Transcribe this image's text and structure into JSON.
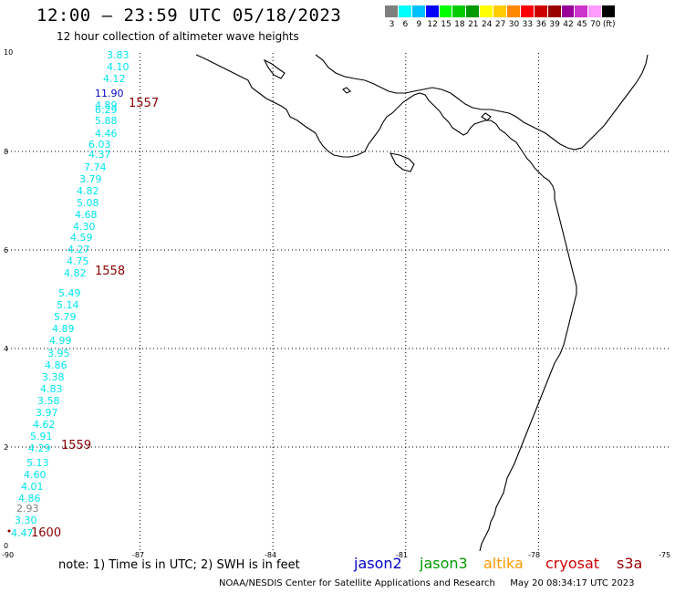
{
  "header": {
    "title": "12:00 – 23:59 UTC 05/18/2023",
    "subtitle": "12 hour collection of altimeter wave heights"
  },
  "scale": {
    "colors": [
      "#7f7f7f",
      "#00ffff",
      "#00bfff",
      "#0000ff",
      "#00ff00",
      "#00cc00",
      "#009900",
      "#ffff00",
      "#ffcc00",
      "#ff8800",
      "#ff0000",
      "#cc0000",
      "#990000",
      "#990099",
      "#cc33cc",
      "#ff99ff",
      "#000000"
    ],
    "labels": [
      "3",
      "6",
      "9",
      "12",
      "15",
      "18",
      "21",
      "24",
      "27",
      "30",
      "33",
      "36",
      "39",
      "42",
      "45",
      "70",
      "(ft)"
    ]
  },
  "axes": {
    "y_labels": [
      "10",
      "8",
      "6",
      "4",
      "2",
      "0"
    ],
    "x_labels": [
      "-90",
      "-87",
      "-84",
      "-81",
      "-78",
      "-75"
    ]
  },
  "passes": [
    "1557",
    "1558",
    "1559",
    "1600"
  ],
  "wave_labels": [
    {
      "v": "3.83",
      "c": "#00e5ee"
    },
    {
      "v": "4.10",
      "c": "#00e5ee"
    },
    {
      "v": "4.12",
      "c": "#00e5ee"
    },
    {
      "v": "11.90",
      "c": "#0000cc"
    },
    {
      "v": "4.89",
      "c": "#00e5ee"
    },
    {
      "v": "6.29",
      "c": "#00e5ee"
    },
    {
      "v": "5.88",
      "c": "#00e5ee"
    },
    {
      "v": "4.46",
      "c": "#00e5ee"
    },
    {
      "v": "6.03",
      "c": "#00e5ee"
    },
    {
      "v": "4.37",
      "c": "#00e5ee"
    },
    {
      "v": "7.74",
      "c": "#00e5ee"
    },
    {
      "v": "3.79",
      "c": "#00e5ee"
    },
    {
      "v": "4.82",
      "c": "#00e5ee"
    },
    {
      "v": "5.08",
      "c": "#00e5ee"
    },
    {
      "v": "4.68",
      "c": "#00e5ee"
    },
    {
      "v": "4.30",
      "c": "#00e5ee"
    },
    {
      "v": "4.59",
      "c": "#00e5ee"
    },
    {
      "v": "4.27",
      "c": "#00e5ee"
    },
    {
      "v": "4.75",
      "c": "#00e5ee"
    },
    {
      "v": "4.82",
      "c": "#00e5ee"
    },
    {
      "v": "5.49",
      "c": "#00e5ee"
    },
    {
      "v": "5.14",
      "c": "#00e5ee"
    },
    {
      "v": "5.79",
      "c": "#00e5ee"
    },
    {
      "v": "4.89",
      "c": "#00e5ee"
    },
    {
      "v": "4.99",
      "c": "#00e5ee"
    },
    {
      "v": "3.95",
      "c": "#00e5ee"
    },
    {
      "v": "4.86",
      "c": "#00e5ee"
    },
    {
      "v": "3.38",
      "c": "#00e5ee"
    },
    {
      "v": "4.83",
      "c": "#00e5ee"
    },
    {
      "v": "3.58",
      "c": "#00e5ee"
    },
    {
      "v": "3.97",
      "c": "#00e5ee"
    },
    {
      "v": "4.62",
      "c": "#00e5ee"
    },
    {
      "v": "5.91",
      "c": "#00e5ee"
    },
    {
      "v": "4.29",
      "c": "#00e5ee"
    },
    {
      "v": "5.13",
      "c": "#00e5ee"
    },
    {
      "v": "4.60",
      "c": "#00e5ee"
    },
    {
      "v": "4.01",
      "c": "#00e5ee"
    },
    {
      "v": "4.86",
      "c": "#00e5ee"
    },
    {
      "v": "2.93",
      "c": "#7f7f7f"
    },
    {
      "v": "3.30",
      "c": "#00e5ee"
    },
    {
      "v": "4.47",
      "c": "#00e5ee"
    }
  ],
  "footer": {
    "note": "note:  1) Time is in UTC;  2) SWH is in feet",
    "agency": "NOAA/NESDIS Center for Satellite Applications and Research",
    "timestamp": "May 20 08:34:17 UTC 2023",
    "sat_jason2": "jason2",
    "sat_jason3": "jason3",
    "sat_altika": "altika",
    "sat_cryosat": "cryosat",
    "sat_s3a": "s3a",
    "colors": {
      "jason2": "#0000cc",
      "jason3": "#009900",
      "altika": "#ff9900",
      "cryosat": "#cc0000",
      "s3a": "#990000"
    }
  }
}
